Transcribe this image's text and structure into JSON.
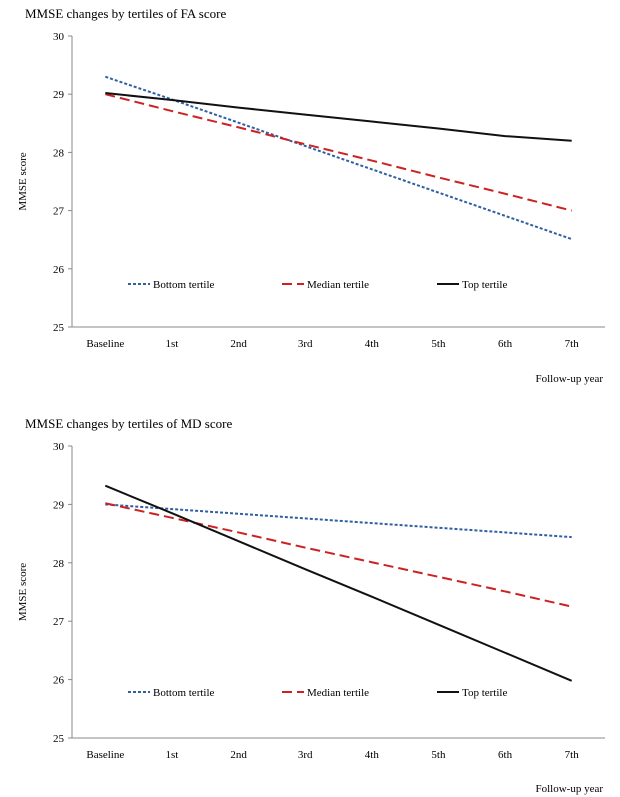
{
  "chart_data": [
    {
      "type": "line",
      "title": "MMSE changes by tertiles of FA score",
      "xlabel": "Follow-up year",
      "ylabel": "MMSE score",
      "categories": [
        "Baseline",
        "1st",
        "2nd",
        "3rd",
        "4th",
        "5th",
        "6th",
        "7th"
      ],
      "ylim": [
        25,
        30
      ],
      "yticks": [
        "25",
        "26",
        "27",
        "28",
        "29",
        "30"
      ],
      "grid": false,
      "legend_position": "inside-bottom",
      "series": [
        {
          "name": "Bottom tertile",
          "color": "#2e5fa3",
          "dash": "dotted",
          "values": [
            29.3,
            28.91,
            28.51,
            28.11,
            27.71,
            27.31,
            26.91,
            26.51
          ]
        },
        {
          "name": "Median tertile",
          "color": "#cc2222",
          "dash": "dashed",
          "values": [
            29.0,
            28.71,
            28.43,
            28.14,
            27.86,
            27.57,
            27.29,
            27.0
          ]
        },
        {
          "name": "Top tertile",
          "color": "#111111",
          "dash": "solid",
          "values": [
            29.02,
            28.9,
            28.77,
            28.65,
            28.53,
            28.41,
            28.28,
            28.2
          ]
        }
      ]
    },
    {
      "type": "line",
      "title": "MMSE changes by tertiles of MD score",
      "xlabel": "Follow-up year",
      "ylabel": "MMSE score",
      "categories": [
        "Baseline",
        "1st",
        "2nd",
        "3rd",
        "4th",
        "5th",
        "6th",
        "7th"
      ],
      "ylim": [
        25,
        30
      ],
      "yticks": [
        "25",
        "26",
        "27",
        "28",
        "29",
        "30"
      ],
      "grid": false,
      "legend_position": "inside-bottom",
      "series": [
        {
          "name": "Bottom tertile",
          "color": "#2e5fa3",
          "dash": "dotted",
          "values": [
            29.0,
            28.92,
            28.84,
            28.76,
            28.68,
            28.6,
            28.52,
            28.44
          ]
        },
        {
          "name": "Median tertile",
          "color": "#cc2222",
          "dash": "dashed",
          "values": [
            29.02,
            28.77,
            28.52,
            28.26,
            28.01,
            27.76,
            27.51,
            27.25
          ]
        },
        {
          "name": "Top tertile",
          "color": "#111111",
          "dash": "solid",
          "values": [
            29.32,
            28.85,
            28.37,
            27.89,
            27.42,
            26.94,
            26.46,
            25.98
          ]
        }
      ]
    }
  ]
}
